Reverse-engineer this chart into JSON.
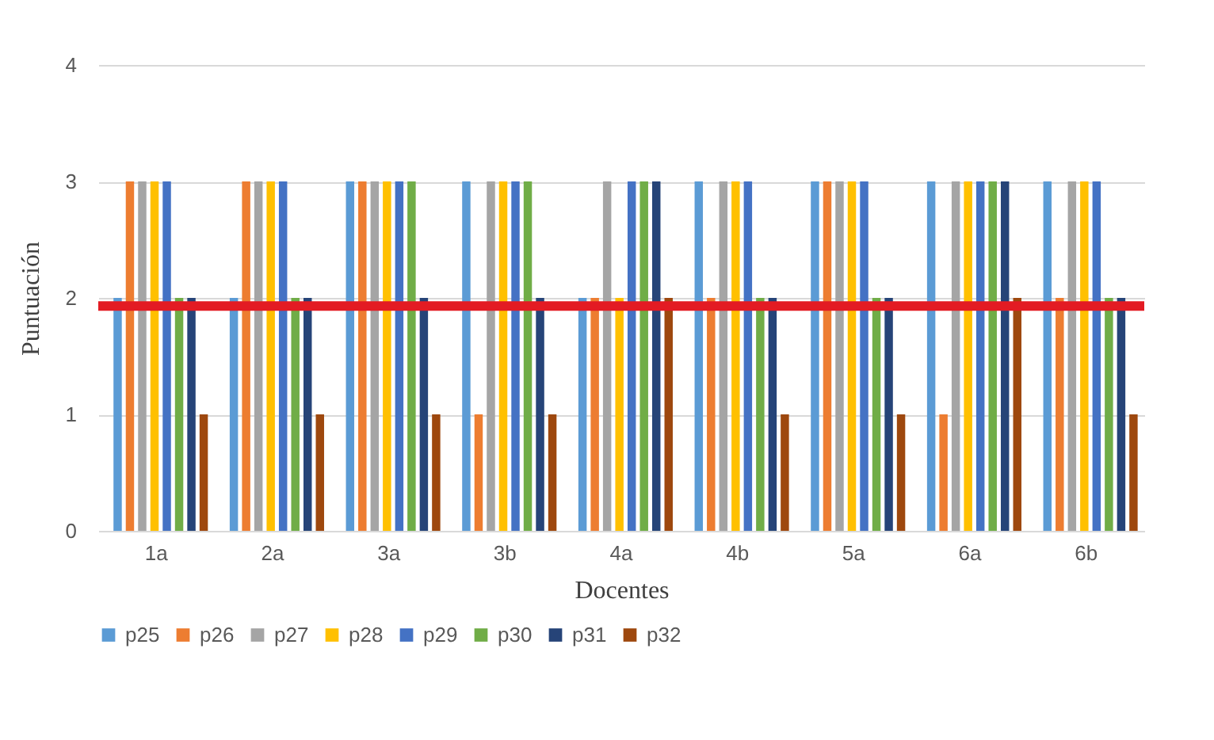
{
  "chart_data": {
    "type": "bar",
    "xlabel": "Docentes",
    "ylabel": "Puntuación",
    "categories": [
      "1a",
      "2a",
      "3a",
      "3b",
      "4a",
      "4b",
      "5a",
      "6a",
      "6b"
    ],
    "series": [
      {
        "name": "p25",
        "color": "#5b9bd5",
        "values": [
          2,
          2,
          3,
          3,
          2,
          3,
          3,
          3,
          3
        ]
      },
      {
        "name": "p26",
        "color": "#ed7d31",
        "values": [
          3,
          3,
          3,
          1,
          2,
          2,
          3,
          1,
          2
        ]
      },
      {
        "name": "p27",
        "color": "#a5a5a5",
        "values": [
          3,
          3,
          3,
          3,
          3,
          3,
          3,
          3,
          3
        ]
      },
      {
        "name": "p28",
        "color": "#ffc000",
        "values": [
          3,
          3,
          3,
          3,
          2,
          3,
          3,
          3,
          3
        ]
      },
      {
        "name": "p29",
        "color": "#4472c4",
        "values": [
          3,
          3,
          3,
          3,
          3,
          3,
          3,
          3,
          3
        ]
      },
      {
        "name": "p30",
        "color": "#70ad47",
        "values": [
          2,
          2,
          3,
          3,
          3,
          2,
          2,
          3,
          2
        ]
      },
      {
        "name": "p31",
        "color": "#264478",
        "values": [
          2,
          2,
          2,
          2,
          3,
          2,
          2,
          3,
          2
        ]
      },
      {
        "name": "p32",
        "color": "#9e480e",
        "values": [
          1,
          1,
          1,
          1,
          2,
          1,
          1,
          2,
          1
        ]
      }
    ],
    "ylim": [
      0,
      4
    ],
    "yticks": [
      0,
      1,
      2,
      3,
      4
    ],
    "grid": "y",
    "legend": "bottom",
    "ref_lines": [
      {
        "axis": "y",
        "value": 1.93,
        "color": "#e31b23"
      }
    ]
  }
}
